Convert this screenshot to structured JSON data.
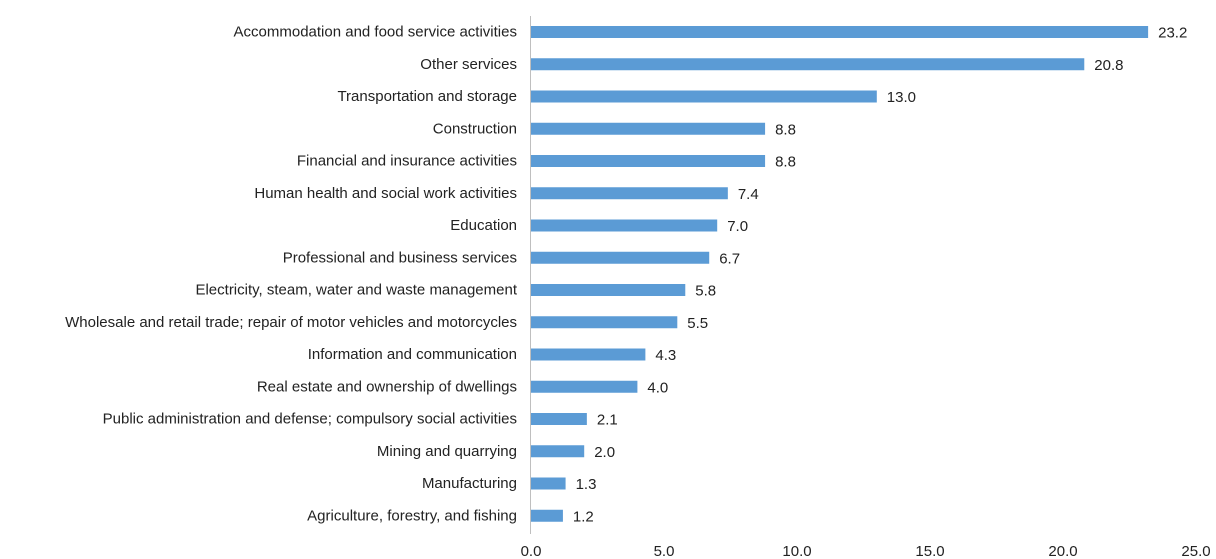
{
  "chart_data": {
    "type": "bar",
    "orientation": "horizontal",
    "categories": [
      "Accommodation and food service activities",
      "Other services",
      "Transportation and storage",
      "Construction",
      "Financial and insurance activities",
      "Human health and social work activities",
      "Education",
      "Professional and business services",
      "Electricity, steam, water and waste management",
      "Wholesale and retail trade; repair of motor vehicles and motorcycles",
      "Information and communication",
      "Real estate and ownership of dwellings",
      "Public administration and defense; compulsory social activities",
      "Mining and quarrying",
      "Manufacturing",
      "Agriculture, forestry, and fishing"
    ],
    "values": [
      23.2,
      20.8,
      13.0,
      8.8,
      8.8,
      7.4,
      7.0,
      6.7,
      5.8,
      5.5,
      4.3,
      4.0,
      2.1,
      2.0,
      1.3,
      1.2
    ],
    "value_labels": [
      "23.2",
      "20.8",
      "13.0",
      "8.8",
      "8.8",
      "7.4",
      "7.0",
      "6.7",
      "5.8",
      "5.5",
      "4.3",
      "4.0",
      "2.1",
      "2.0",
      "1.3",
      "1.2"
    ],
    "xlim": [
      0,
      25
    ],
    "x_ticks": [
      0,
      5,
      10,
      15,
      20,
      25
    ],
    "x_tick_labels": [
      "0.0",
      "5.0",
      "10.0",
      "15.0",
      "20.0",
      "25.0"
    ],
    "grid": false,
    "legend": "none",
    "bar_color": "#5b9bd5",
    "axis_color": "#bfbfbf"
  }
}
